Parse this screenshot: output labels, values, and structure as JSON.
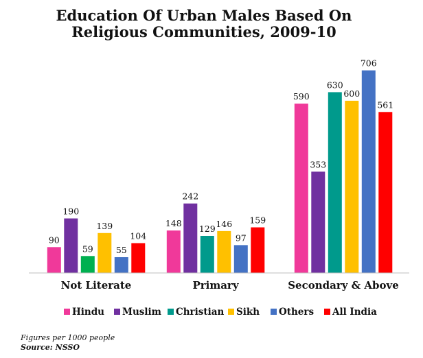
{
  "chart_data": {
    "type": "bar",
    "title_lines": [
      "Education Of Urban Males Based On",
      "Religious Communities, 2009-10"
    ],
    "categories": [
      "Not Literate",
      "Primary",
      "Secondary & Above"
    ],
    "series": [
      {
        "name": "Hindu",
        "color": "#f0399a",
        "values": [
          90,
          148,
          590
        ]
      },
      {
        "name": "Muslim",
        "color": "#7030a0",
        "values": [
          190,
          242,
          353
        ]
      },
      {
        "name": "Christian",
        "color": "#009a8c",
        "values": [
          59,
          129,
          630
        ]
      },
      {
        "name": "Sikh",
        "color": "#ffc000",
        "values": [
          139,
          146,
          600
        ]
      },
      {
        "name": "Others",
        "color": "#4472c4",
        "values": [
          55,
          97,
          706
        ]
      },
      {
        "name": "All India",
        "color": "#ff0000",
        "values": [
          104,
          159,
          561
        ]
      }
    ],
    "special_bar_colors": {
      "series": 2,
      "category": 0,
      "color": "#00b050"
    },
    "ylim": [
      0,
      760
    ],
    "grid": false,
    "legend_position": "bottom"
  },
  "footnote": {
    "note": "Figures per 1000 people",
    "source": "Source: NSSO"
  }
}
